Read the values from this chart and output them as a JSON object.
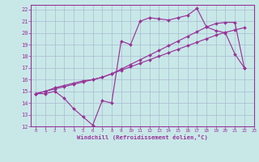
{
  "xlabel": "Windchill (Refroidissement éolien,°C)",
  "xlim": [
    -0.5,
    23
  ],
  "ylim": [
    12,
    22.4
  ],
  "xticks": [
    0,
    1,
    2,
    3,
    4,
    5,
    6,
    7,
    8,
    9,
    10,
    11,
    12,
    13,
    14,
    15,
    16,
    17,
    18,
    19,
    20,
    21,
    22,
    23
  ],
  "yticks": [
    12,
    13,
    14,
    15,
    16,
    17,
    18,
    19,
    20,
    21,
    22
  ],
  "background_color": "#c8e8e8",
  "grid_color": "#aabbd0",
  "line_color": "#993399",
  "line1_y": [
    14.8,
    14.8,
    15.0,
    14.4,
    13.5,
    12.8,
    12.1,
    14.2,
    14.0,
    19.3,
    19.0,
    21.0,
    21.3,
    21.2,
    21.1,
    21.3,
    21.5,
    22.1,
    20.5,
    20.2,
    20.0,
    18.2,
    17.0,
    null
  ],
  "line2_y": [
    14.8,
    15.0,
    15.3,
    15.5,
    15.7,
    15.9,
    16.0,
    16.2,
    16.5,
    16.8,
    17.1,
    17.4,
    17.7,
    18.0,
    18.3,
    18.6,
    18.9,
    19.2,
    19.5,
    19.8,
    20.05,
    20.25,
    20.45,
    null
  ],
  "line3_y": [
    14.8,
    15.0,
    15.2,
    15.4,
    15.6,
    15.8,
    16.0,
    16.2,
    16.5,
    16.9,
    17.3,
    17.7,
    18.1,
    18.5,
    18.9,
    19.3,
    19.7,
    20.1,
    20.5,
    20.8,
    20.9,
    20.9,
    17.0,
    null
  ]
}
